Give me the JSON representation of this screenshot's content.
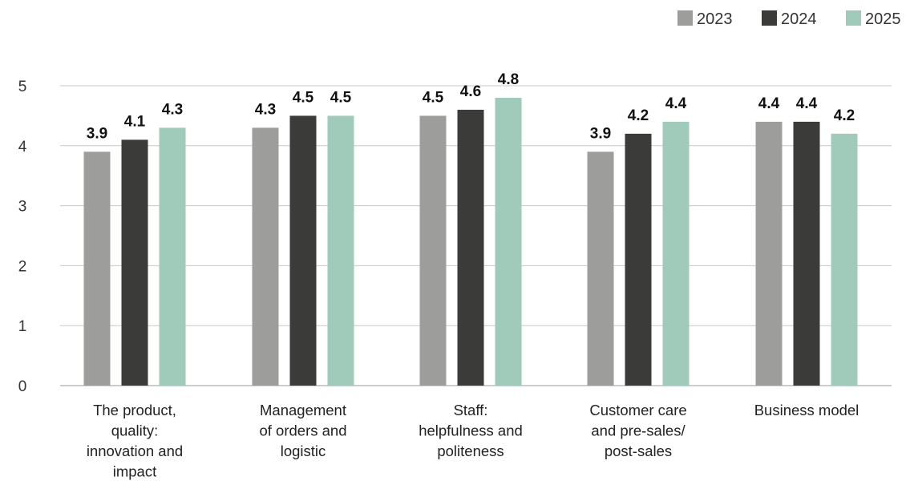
{
  "chart_data": {
    "type": "bar",
    "title": "",
    "xlabel": "",
    "ylabel": "",
    "ylim": [
      0,
      5
    ],
    "yticks": [
      0,
      1,
      2,
      3,
      4,
      5
    ],
    "grid": true,
    "legend_position": "top-right",
    "categories": [
      [
        "The product,",
        "quality:",
        "innovation and",
        "impact"
      ],
      [
        "Management",
        "of orders and",
        "logistic"
      ],
      [
        "Staff:",
        "helpfulness and",
        "politeness"
      ],
      [
        "Customer care",
        "and pre-sales/",
        "post-sales"
      ],
      [
        "Business model"
      ]
    ],
    "series": [
      {
        "name": "2023",
        "color": "#9d9d9b",
        "values": [
          3.9,
          4.3,
          4.5,
          3.9,
          4.4
        ]
      },
      {
        "name": "2024",
        "color": "#3b3b3a",
        "values": [
          4.1,
          4.5,
          4.6,
          4.2,
          4.4
        ]
      },
      {
        "name": "2025",
        "color": "#a0cbbb",
        "values": [
          4.3,
          4.5,
          4.8,
          4.4,
          4.2
        ]
      }
    ],
    "data_labels": [
      [
        "3.9",
        "4.3",
        "4.5",
        "3.9",
        "4.4"
      ],
      [
        "4.1",
        "4.5",
        "4.6",
        "4.2",
        "4.4"
      ],
      [
        "4.3",
        "4.5",
        "4.8",
        "4.4",
        "4.2"
      ]
    ]
  }
}
